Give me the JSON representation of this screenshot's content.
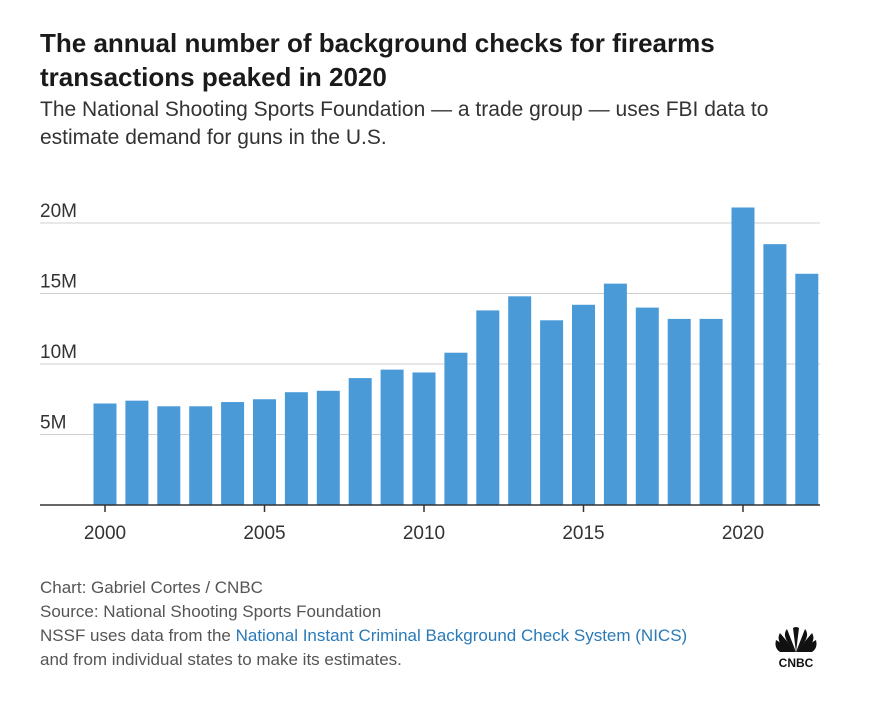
{
  "header": {
    "title": "The annual number of background checks for firearms transactions peaked in 2020",
    "subtitle": "The National Shooting Sports Foundation — a trade group — uses FBI data to estimate demand for guns in the U.S."
  },
  "footer": {
    "credit": "Chart: Gabriel Cortes / CNBC",
    "source": "Source: National Shooting Sports Foundation",
    "note_prefix": "NSSF uses data from the ",
    "note_link": "National Instant Criminal Background Check System (NICS)",
    "note_suffix": "and from individual states to make its estimates."
  },
  "logo": {
    "text": "CNBC"
  },
  "colors": {
    "bar": "#4a9ad8",
    "grid": "#d0d0d0",
    "axis": "#333333",
    "link": "#2a7ab8"
  },
  "chart_data": {
    "type": "bar",
    "title": "",
    "xlabel": "",
    "ylabel": "",
    "x": [
      2000,
      2001,
      2002,
      2003,
      2004,
      2005,
      2006,
      2007,
      2008,
      2009,
      2010,
      2011,
      2012,
      2013,
      2014,
      2015,
      2016,
      2017,
      2018,
      2019,
      2020,
      2021,
      2022
    ],
    "values": [
      7.2,
      7.4,
      7.0,
      7.0,
      7.3,
      7.5,
      8.0,
      8.1,
      9.0,
      9.6,
      9.4,
      10.8,
      13.8,
      14.8,
      13.1,
      14.2,
      15.7,
      14.0,
      13.2,
      13.2,
      21.1,
      18.5,
      16.4
    ],
    "value_unit": "millions",
    "ylim": [
      0,
      21.5
    ],
    "y_ticks": [
      5,
      10,
      15,
      20
    ],
    "y_tick_labels": [
      "5M",
      "10M",
      "15M",
      "20M"
    ],
    "x_ticks": [
      2000,
      2005,
      2010,
      2015,
      2020
    ],
    "x_tick_labels": [
      "2000",
      "2005",
      "2010",
      "2015",
      "2020"
    ],
    "grid": true
  }
}
